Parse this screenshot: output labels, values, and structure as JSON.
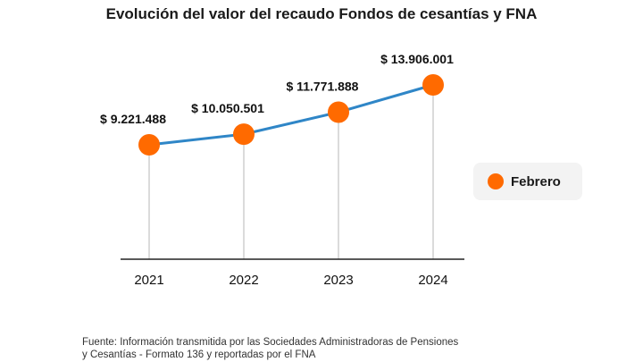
{
  "chart_data": {
    "type": "line",
    "title": "Evolución del valor del recaudo Fondos de cesantías y FNA",
    "categories": [
      "2021",
      "2022",
      "2023",
      "2024"
    ],
    "series": [
      {
        "name": "Febrero",
        "values": [
          9221488,
          10050501,
          11771888,
          13906001
        ],
        "labels": [
          "$ 9.221.488",
          "$ 10.050.501",
          "$ 11.771.888",
          "$ 13.906.001"
        ]
      }
    ],
    "xlabel": "",
    "ylabel": "",
    "ylim": [
      0,
      15000000
    ],
    "grid": false,
    "legend_position": "right"
  },
  "source": {
    "line1": "Fuente: Información transmitida por las Sociedades Administradoras de Pensiones",
    "line2": "y Cesantías - Formato 136 y reportadas por el FNA"
  },
  "colors": {
    "marker": "#ff6a00",
    "line": "#2f86c7",
    "axis": "#222222",
    "drop_line": "#cfcfcf",
    "legend_bg": "#f3f3f3"
  }
}
